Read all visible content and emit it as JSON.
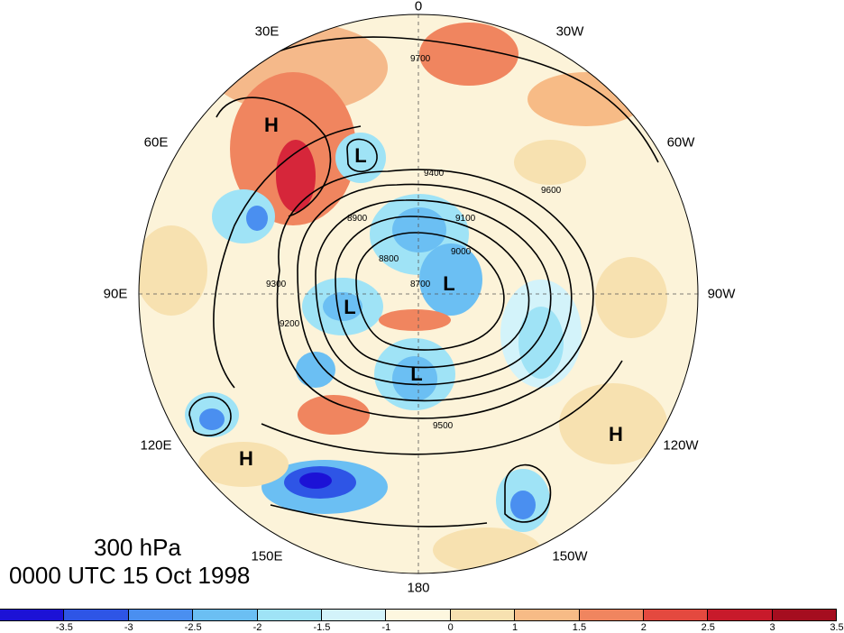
{
  "title": {
    "level": "300 hPa",
    "valid_time": "0000 UTC 15 Oct 1998"
  },
  "longitude_labels": [
    {
      "id": "lon-0",
      "text": "0",
      "angle_deg": 0
    },
    {
      "id": "lon-30w",
      "text": "30W",
      "angle_deg": 30
    },
    {
      "id": "lon-60w",
      "text": "60W",
      "angle_deg": 60
    },
    {
      "id": "lon-90w",
      "text": "90W",
      "angle_deg": 90
    },
    {
      "id": "lon-120w",
      "text": "120W",
      "angle_deg": 120
    },
    {
      "id": "lon-150w",
      "text": "150W",
      "angle_deg": 150
    },
    {
      "id": "lon-180",
      "text": "180",
      "angle_deg": 180
    },
    {
      "id": "lon-150e",
      "text": "150E",
      "angle_deg": 210
    },
    {
      "id": "lon-120e",
      "text": "120E",
      "angle_deg": 240
    },
    {
      "id": "lon-90e",
      "text": "90E",
      "angle_deg": 270
    },
    {
      "id": "lon-60e",
      "text": "60E",
      "angle_deg": 300
    },
    {
      "id": "lon-30e",
      "text": "30E",
      "angle_deg": 330
    }
  ],
  "contour_labels": [
    "9700",
    "9600",
    "9500",
    "9400",
    "9300",
    "9200",
    "9100",
    "9000",
    "8900",
    "8800",
    "8700"
  ],
  "pressure_systems": [
    {
      "id": "high-scandinavia",
      "label": "H"
    },
    {
      "id": "low-urals",
      "label": "L"
    },
    {
      "id": "low-arctic",
      "label": "L"
    },
    {
      "id": "low-siberia",
      "label": "L"
    },
    {
      "id": "low-pacific",
      "label": "L"
    },
    {
      "id": "high-eastasia",
      "label": "H"
    },
    {
      "id": "high-eastpacific",
      "label": "H"
    }
  ],
  "colorbar": {
    "colors": [
      "#1c12d6",
      "#2e55e6",
      "#4a8ff0",
      "#6bbff3",
      "#9fe3f6",
      "#d3f3fa",
      "#fdf7df",
      "#f7e1b0",
      "#f7bb86",
      "#f0855f",
      "#e4493f",
      "#c81a2b",
      "#a50d1f"
    ],
    "tick_labels": [
      "-3.5",
      "-3",
      "-2.5",
      "-2",
      "-1.5",
      "-1",
      "0",
      "1",
      "1.5",
      "2",
      "2.5",
      "3",
      "3.5"
    ]
  }
}
